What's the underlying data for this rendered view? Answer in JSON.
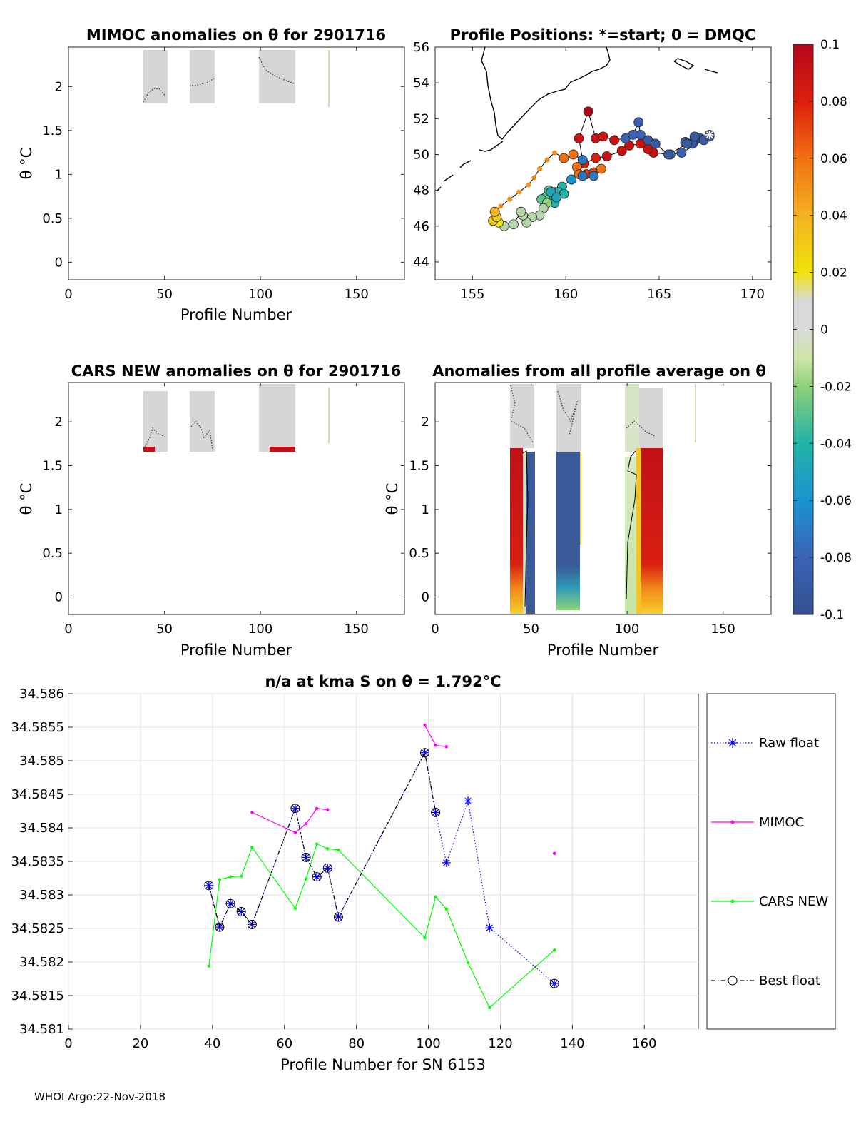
{
  "footer": "WHOI Argo:22-Nov-2018",
  "panels": {
    "mimoc": {
      "title": "MIMOC anomalies on θ  for 2901716",
      "xlabel": "Profile Number",
      "ylabel": "θ °C",
      "xticks": [
        "0",
        "50",
        "100",
        "150"
      ],
      "yticks": [
        "0",
        "0.5",
        "1",
        "1.5",
        "2"
      ],
      "xlim": [
        0,
        175
      ],
      "ylim": [
        -0.2,
        2.45
      ]
    },
    "positions": {
      "title": "Profile Positions: *=start; 0 = DMQC",
      "xticks": [
        "155",
        "160",
        "165",
        "170"
      ],
      "yticks": [
        "44",
        "46",
        "48",
        "50",
        "52",
        "54",
        "56"
      ],
      "xlim": [
        153,
        171
      ],
      "ylim": [
        43,
        56
      ]
    },
    "cars": {
      "title": "CARS NEW anomalies on θ for 2901716",
      "xlabel": "Profile Number",
      "ylabel": "θ °C",
      "xticks": [
        "0",
        "50",
        "100",
        "150"
      ],
      "yticks": [
        "0",
        "0.5",
        "1",
        "1.5",
        "2"
      ],
      "xlim": [
        0,
        175
      ],
      "ylim": [
        -0.2,
        2.45
      ]
    },
    "allavg": {
      "title": "Anomalies from all profile average on θ",
      "xlabel": "Profile Number",
      "ylabel": "θ °C",
      "xticks": [
        "0",
        "50",
        "100",
        "150"
      ],
      "yticks": [
        "0",
        "0.5",
        "1",
        "1.5",
        "2"
      ],
      "xlim": [
        0,
        175
      ],
      "ylim": [
        -0.2,
        2.45
      ]
    }
  },
  "colorbar": {
    "ticks": [
      "0.1",
      "0.08",
      "0.06",
      "0.04",
      "0.02",
      "0",
      "-0.02",
      "-0.04",
      "-0.06",
      "-0.08",
      "-0.1"
    ],
    "range": [
      -0.1,
      0.1
    ]
  },
  "chart_data": [
    {
      "type": "line",
      "title": "n/a at kma S on θ = 1.792°C",
      "xlabel": "Profile Number for SN 6153",
      "ylabel": "",
      "xlim": [
        0,
        175
      ],
      "ylim": [
        34.581,
        34.586
      ],
      "xticks": [
        "0",
        "20",
        "40",
        "60",
        "80",
        "100",
        "120",
        "140",
        "160"
      ],
      "yticks": [
        "34.581",
        "34.5815",
        "34.582",
        "34.5825",
        "34.583",
        "34.5835",
        "34.584",
        "34.5845",
        "34.585",
        "34.5855",
        "34.586"
      ],
      "grid": true,
      "legend_position": "right",
      "series": [
        {
          "name": "Raw float",
          "color": "#0000ff",
          "points": [
            [
              39,
              34.58314
            ],
            [
              42,
              34.58252
            ],
            [
              45,
              34.58287
            ],
            [
              48,
              34.58275
            ],
            [
              51,
              34.58256
            ],
            [
              63,
              34.58429
            ],
            [
              66,
              34.58356
            ],
            [
              69,
              34.58327
            ],
            [
              72,
              34.5834
            ],
            [
              75,
              34.58267
            ],
            [
              99,
              34.58512
            ],
            [
              102,
              34.58423
            ],
            [
              105,
              34.58348
            ],
            [
              111,
              34.5844
            ],
            [
              117,
              34.58251
            ],
            [
              135,
              34.58168
            ]
          ]
        },
        {
          "name": "MIMOC",
          "color": "#ff00ff",
          "segments": [
            [
              [
                51,
                34.58423
              ],
              [
                63,
                34.58393
              ],
              [
                66,
                34.58406
              ],
              [
                69,
                34.58429
              ],
              [
                72,
                34.58427
              ]
            ],
            [
              [
                99,
                34.58553
              ],
              [
                102,
                34.58523
              ],
              [
                105,
                34.58521
              ]
            ],
            [
              [
                135,
                34.58362
              ]
            ]
          ]
        },
        {
          "name": "CARS NEW",
          "color": "#00ff00",
          "points": [
            [
              39,
              34.58194
            ],
            [
              42,
              34.58323
            ],
            [
              45,
              34.58327
            ],
            [
              48,
              34.58328
            ],
            [
              51,
              34.58371
            ],
            [
              63,
              34.5828
            ],
            [
              66,
              34.58324
            ],
            [
              69,
              34.58376
            ],
            [
              72,
              34.58369
            ],
            [
              75,
              34.58367
            ],
            [
              99,
              34.58236
            ],
            [
              102,
              34.58297
            ],
            [
              105,
              34.58279
            ],
            [
              111,
              34.58199
            ],
            [
              117,
              34.58132
            ],
            [
              135,
              34.58218
            ]
          ]
        },
        {
          "name": "Best float",
          "color": "#000000",
          "points": [
            [
              39,
              34.58314
            ],
            [
              42,
              34.58252
            ],
            [
              45,
              34.58287
            ],
            [
              48,
              34.58275
            ],
            [
              51,
              34.58256
            ],
            [
              63,
              34.58429
            ],
            [
              66,
              34.58356
            ],
            [
              69,
              34.58327
            ],
            [
              72,
              34.5834
            ],
            [
              75,
              34.58267
            ],
            [
              99,
              34.58512
            ],
            [
              102,
              34.58423
            ]
          ],
          "points_tail": [
            [
              135,
              34.58168
            ]
          ]
        }
      ]
    },
    {
      "type": "scatter",
      "title": "Profile Positions: *=start; 0 = DMQC",
      "xlim": [
        153,
        171
      ],
      "ylim": [
        43,
        56
      ],
      "track": [
        [
          167.7,
          51.1
        ],
        [
          167.2,
          50.9
        ],
        [
          166.8,
          50.6
        ],
        [
          166.4,
          50.7
        ],
        [
          166.9,
          51.0
        ],
        [
          167.4,
          50.8
        ],
        [
          166.2,
          50.1
        ],
        [
          165.6,
          50.0
        ],
        [
          164.7,
          50.1
        ],
        [
          164.4,
          50.3
        ],
        [
          164.0,
          50.6
        ],
        [
          163.4,
          50.5
        ],
        [
          163.0,
          50.2
        ],
        [
          162.2,
          49.9
        ],
        [
          161.6,
          49.8
        ],
        [
          161.0,
          49.5
        ],
        [
          160.6,
          49.3
        ],
        [
          160.7,
          48.9
        ],
        [
          161.1,
          48.9
        ],
        [
          161.5,
          49.0
        ],
        [
          161.9,
          49.2
        ],
        [
          161.5,
          48.8
        ],
        [
          160.9,
          48.8
        ],
        [
          160.3,
          48.6
        ],
        [
          159.8,
          48.2
        ],
        [
          159.4,
          47.9
        ],
        [
          159.2,
          47.6
        ],
        [
          159.1,
          48.0
        ],
        [
          159.6,
          47.9
        ],
        [
          159.9,
          47.8
        ],
        [
          159.4,
          47.3
        ],
        [
          158.9,
          47.6
        ],
        [
          158.7,
          47.5
        ],
        [
          159.2,
          47.9
        ],
        [
          159.5,
          47.6
        ],
        [
          159.0,
          47.3
        ],
        [
          158.8,
          47.0
        ],
        [
          158.6,
          46.6
        ],
        [
          158.2,
          46.5
        ],
        [
          157.9,
          46.2
        ],
        [
          157.7,
          46.6
        ],
        [
          157.6,
          46.8
        ],
        [
          157.2,
          46.1
        ],
        [
          156.7,
          46.0
        ],
        [
          156.4,
          46.2
        ],
        [
          156.1,
          46.3
        ],
        [
          156.3,
          46.5
        ],
        [
          156.2,
          46.8
        ],
        [
          156.5,
          47.1
        ],
        [
          157.0,
          47.5
        ],
        [
          157.5,
          47.9
        ],
        [
          158.0,
          48.3
        ],
        [
          158.3,
          48.7
        ],
        [
          158.6,
          49.2
        ],
        [
          159.0,
          49.7
        ],
        [
          159.4,
          50.1
        ],
        [
          159.9,
          49.8
        ],
        [
          160.4,
          50.0
        ],
        [
          160.9,
          49.7
        ],
        [
          160.7,
          50.9
        ],
        [
          161.2,
          52.4
        ],
        [
          161.6,
          50.9
        ],
        [
          162.0,
          51.0
        ],
        [
          162.6,
          50.8
        ],
        [
          163.2,
          50.9
        ],
        [
          163.6,
          51.1
        ],
        [
          163.9,
          51.8
        ],
        [
          164.0,
          51.1
        ],
        [
          164.4,
          50.8
        ],
        [
          164.8,
          50.6
        ],
        [
          165.5,
          50.0
        ],
        [
          166.5,
          50.6
        ],
        [
          167.7,
          51.0
        ]
      ],
      "track_anomaly": [
        -0.09,
        -0.09,
        -0.09,
        -0.09,
        -0.09,
        -0.09,
        -0.08,
        -0.08,
        0.09,
        0.09,
        0.09,
        0.09,
        0.09,
        0.09,
        0.08,
        0.08,
        0.06,
        0.06,
        0.07,
        0.07,
        0.06,
        -0.07,
        -0.07,
        -0.06,
        -0.04,
        -0.04,
        -0.03,
        -0.03,
        -0.04,
        -0.04,
        -0.04,
        -0.03,
        -0.03,
        -0.05,
        -0.05,
        -0.02,
        -0.01,
        -0.01,
        -0.01,
        -0.01,
        -0.01,
        -0.01,
        -0.01,
        -0.01,
        0.02,
        0.03,
        0.03,
        0.04,
        0.05,
        0.05,
        0.05,
        0.05,
        0.05,
        0.05,
        0.05,
        0.05,
        0.06,
        0.06,
        -0.07,
        0.09,
        0.1,
        0.09,
        0.09,
        0.09,
        -0.08,
        -0.08,
        -0.08,
        -0.08,
        -0.09,
        -0.09,
        -0.09,
        -0.09,
        -0.09
      ]
    }
  ]
}
